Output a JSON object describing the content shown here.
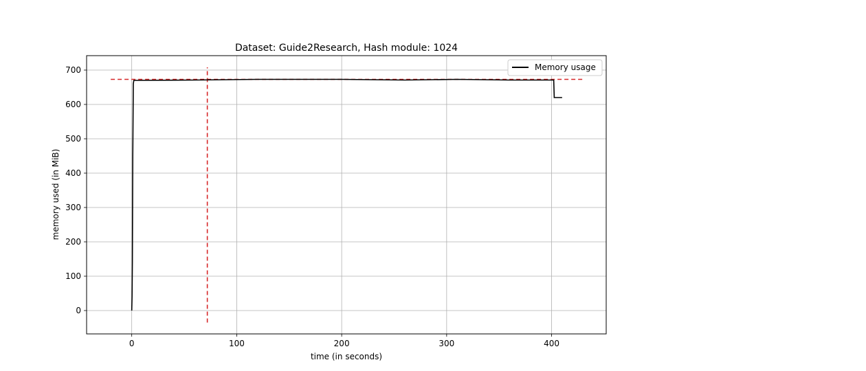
{
  "chart_data": {
    "type": "line",
    "title": "Dataset: Guide2Research, Hash module: 1024",
    "xlabel": "time (in seconds)",
    "ylabel": "memory used (in MiB)",
    "xlim": [
      -43,
      452
    ],
    "ylim": [
      -68,
      742
    ],
    "xticks": [
      0,
      100,
      200,
      300,
      400
    ],
    "yticks": [
      0,
      100,
      200,
      300,
      400,
      500,
      600,
      700
    ],
    "grid": true,
    "legend_position": "top-right",
    "series": [
      {
        "name": "Memory usage",
        "color": "#000000",
        "x": [
          0,
          0.3,
          0.6,
          1.0,
          1.5,
          2.0,
          60,
          120,
          200,
          260,
          310,
          360,
          402,
          402.5,
          410
        ],
        "y": [
          0,
          40,
          140,
          450,
          660,
          670,
          671,
          673,
          673,
          671,
          673,
          671,
          671,
          620,
          620
        ]
      }
    ],
    "reference_lines": [
      {
        "orientation": "horizontal",
        "y": 673,
        "x_range": [
          -20,
          430
        ],
        "color": "#d62728",
        "style": "dashed"
      },
      {
        "orientation": "vertical",
        "x": 72,
        "y_range": [
          -35,
          708
        ],
        "color": "#d62728",
        "style": "dashed"
      }
    ]
  }
}
